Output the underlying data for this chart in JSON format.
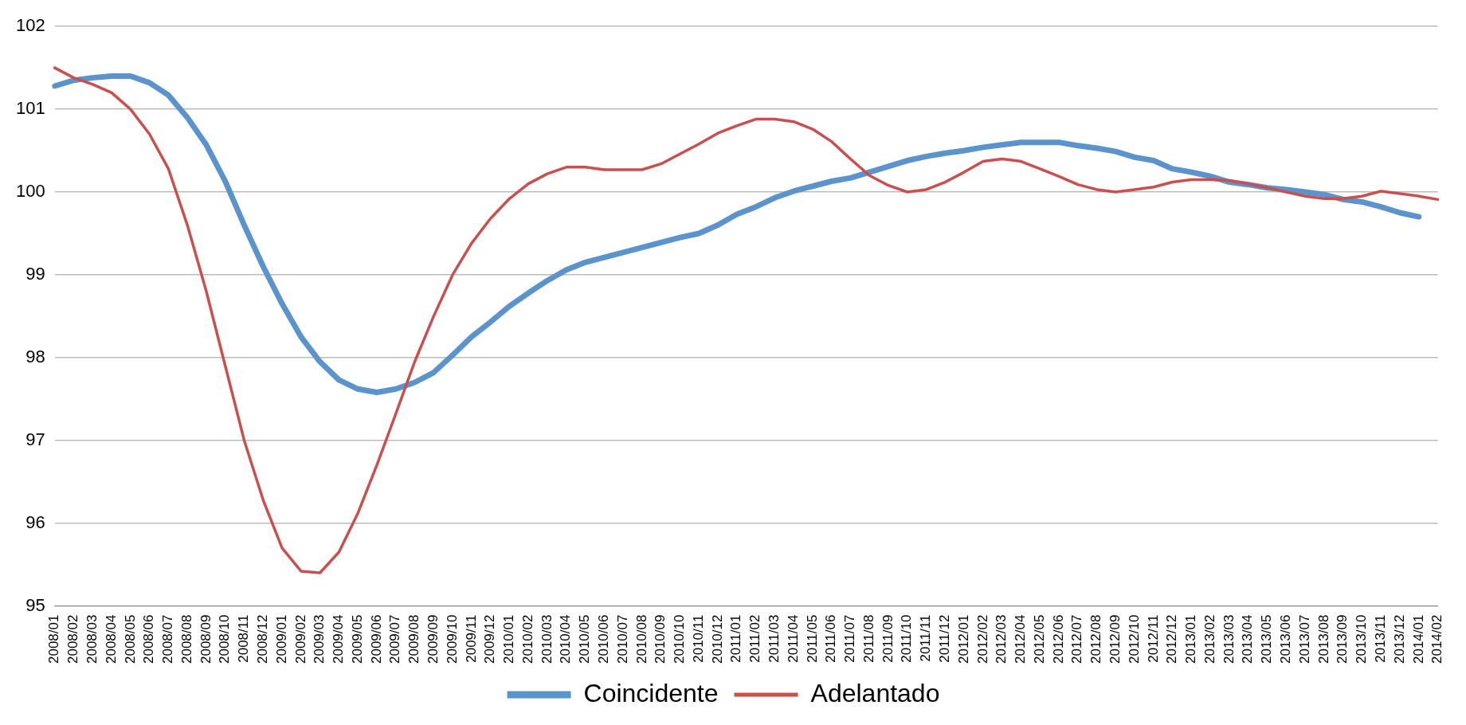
{
  "chart_data": {
    "type": "line",
    "categories": [
      "2008/01",
      "2008/02",
      "2008/03",
      "2008/04",
      "2008/05",
      "2008/06",
      "2008/07",
      "2008/08",
      "2008/09",
      "2008/10",
      "2008/11",
      "2008/12",
      "2009/01",
      "2009/02",
      "2009/03",
      "2009/04",
      "2009/05",
      "2009/06",
      "2009/07",
      "2009/08",
      "2009/09",
      "2009/10",
      "2009/11",
      "2009/12",
      "2010/01",
      "2010/02",
      "2010/03",
      "2010/04",
      "2010/05",
      "2010/06",
      "2010/07",
      "2010/08",
      "2010/09",
      "2010/10",
      "2010/11",
      "2010/12",
      "2011/01",
      "2011/02",
      "2011/03",
      "2011/04",
      "2011/05",
      "2011/06",
      "2011/07",
      "2011/08",
      "2011/09",
      "2011/10",
      "2011/11",
      "2011/12",
      "2012/01",
      "2012/02",
      "2012/03",
      "2012/04",
      "2012/05",
      "2012/06",
      "2012/07",
      "2012/08",
      "2012/09",
      "2012/10",
      "2012/11",
      "2012/12",
      "2013/01",
      "2013/02",
      "2013/03",
      "2013/04",
      "2013/05",
      "2013/06",
      "2013/07",
      "2013/08",
      "2013/09",
      "2013/10",
      "2013/11",
      "2013/12",
      "2014/01",
      "2014/02"
    ],
    "series": [
      {
        "name": "Coincidente",
        "color": "#5b93cd",
        "values": [
          101.28,
          101.35,
          101.38,
          101.4,
          101.4,
          101.32,
          101.17,
          100.9,
          100.57,
          100.13,
          99.6,
          99.1,
          98.65,
          98.25,
          97.95,
          97.73,
          97.62,
          97.58,
          97.62,
          97.7,
          97.82,
          98.03,
          98.25,
          98.43,
          98.62,
          98.78,
          98.93,
          99.06,
          99.15,
          99.21,
          99.27,
          99.33,
          99.39,
          99.45,
          99.5,
          99.6,
          99.73,
          99.82,
          99.93,
          100.01,
          100.07,
          100.13,
          100.17,
          100.24,
          100.31,
          100.38,
          100.43,
          100.47,
          100.5,
          100.54,
          100.57,
          100.6,
          100.6,
          100.6,
          100.56,
          100.53,
          100.49,
          100.42,
          100.38,
          100.28,
          100.24,
          100.19,
          100.12,
          100.09,
          100.05,
          100.03,
          100.0,
          99.97,
          99.91,
          99.88,
          99.82,
          99.75,
          99.7,
          null
        ]
      },
      {
        "name": "Adelantado",
        "color": "#c9504e",
        "values": [
          101.5,
          101.38,
          101.3,
          101.2,
          101.0,
          100.7,
          100.28,
          99.6,
          98.8,
          97.9,
          97.0,
          96.28,
          95.7,
          95.42,
          95.4,
          95.65,
          96.12,
          96.7,
          97.32,
          97.95,
          98.5,
          99.0,
          99.38,
          99.68,
          99.92,
          100.1,
          100.22,
          100.3,
          100.3,
          100.27,
          100.27,
          100.27,
          100.34,
          100.46,
          100.58,
          100.71,
          100.8,
          100.88,
          100.88,
          100.85,
          100.76,
          100.61,
          100.4,
          100.2,
          100.08,
          100.0,
          100.03,
          100.12,
          100.24,
          100.37,
          100.4,
          100.37,
          100.28,
          100.19,
          100.09,
          100.03,
          100.0,
          100.03,
          100.06,
          100.12,
          100.15,
          100.15,
          100.14,
          100.1,
          100.05,
          100.0,
          99.95,
          99.92,
          99.92,
          99.95,
          100.01,
          99.98,
          99.95,
          99.91
        ]
      }
    ],
    "ylim": [
      95,
      102
    ],
    "yticks": [
      95,
      96,
      97,
      98,
      99,
      100,
      101,
      102
    ],
    "grid": "y",
    "legend": "bottom",
    "marker": "none",
    "line_style": "solid"
  }
}
